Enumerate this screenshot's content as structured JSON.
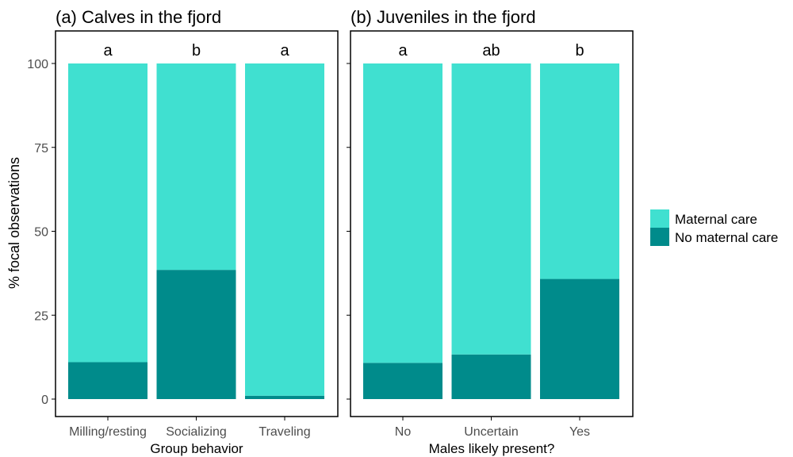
{
  "colors": {
    "maternal_care": "#40E0D0",
    "no_maternal_care": "#008B8B",
    "axis": "#000000",
    "tick_label": "#4D4D4D"
  },
  "y_axis": {
    "label": "% focal observations",
    "ticks": [
      "0",
      "25",
      "50",
      "75",
      "100"
    ],
    "tick_values": [
      0,
      25,
      50,
      75,
      100
    ]
  },
  "legend": {
    "placement": "right",
    "items": [
      {
        "label": "Maternal care",
        "color_key": "maternal_care"
      },
      {
        "label": "No maternal care",
        "color_key": "no_maternal_care"
      }
    ]
  },
  "chart_data": [
    {
      "type": "bar",
      "stacked": true,
      "percent": true,
      "title": "(a) Calves in the fjord",
      "xlabel": "Group behavior",
      "ylabel": "% focal observations",
      "ylim": [
        0,
        100
      ],
      "categories": [
        "Milling/resting",
        "Socializing",
        "Traveling"
      ],
      "significance_letters": [
        "a",
        "b",
        "a"
      ],
      "series": [
        {
          "name": "No maternal care",
          "values": [
            11,
            38.5,
            1
          ]
        },
        {
          "name": "Maternal care",
          "values": [
            89,
            61.5,
            99
          ]
        }
      ]
    },
    {
      "type": "bar",
      "stacked": true,
      "percent": true,
      "title": "(b) Juveniles in the fjord",
      "xlabel": "Males likely present?",
      "ylabel": "% focal observations",
      "ylim": [
        0,
        100
      ],
      "categories": [
        "No",
        "Uncertain",
        "Yes"
      ],
      "significance_letters": [
        "a",
        "ab",
        "b"
      ],
      "series": [
        {
          "name": "No maternal care",
          "values": [
            10.8,
            13.3,
            35.8
          ]
        },
        {
          "name": "Maternal care",
          "values": [
            89.2,
            86.7,
            64.2
          ]
        }
      ]
    }
  ]
}
